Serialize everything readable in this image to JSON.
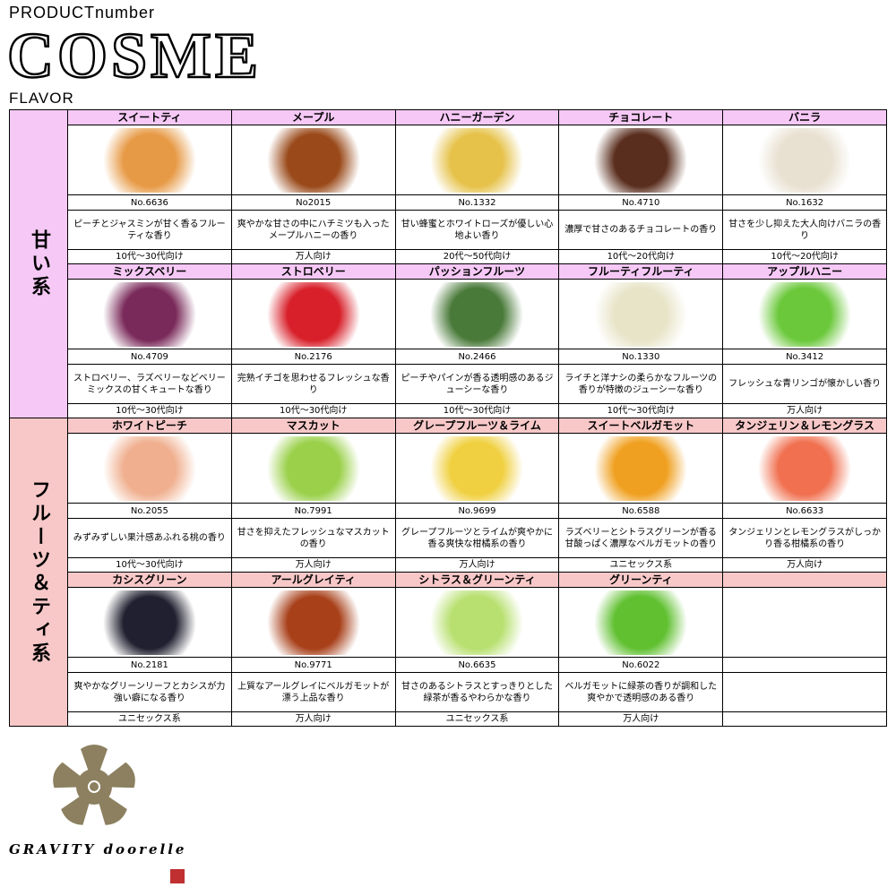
{
  "header": {
    "top": "PRODUCT",
    "top_suffix": "number",
    "title": "COSME",
    "sub": "FLAVOR"
  },
  "colors": {
    "sweet": "#f5c8f5",
    "fruit": "#f8c8c8"
  },
  "groups": [
    {
      "label": "甘い系",
      "color": "#f5c8f5",
      "rows": [
        [
          {
            "name": "スイートティ",
            "no": "No.6636",
            "desc": "ピーチとジャスミンが甘く香るフルーティな香り",
            "age": "10代～30代向け",
            "img": "#e79a46"
          },
          {
            "name": "メープル",
            "no": "No2015",
            "desc": "爽やかな甘さの中にハチミツも入ったメープルハニーの香り",
            "age": "万人向け",
            "img": "#9a4a1a"
          },
          {
            "name": "ハニーガーデン",
            "no": "No.1332",
            "desc": "甘い蜂蜜とホワイトローズが優しい心地よい香り",
            "age": "20代～50代向け",
            "img": "#e6c24a"
          },
          {
            "name": "チョコレート",
            "no": "No.4710",
            "desc": "濃厚で甘さのあるチョコレートの香り",
            "age": "10代～20代向け",
            "img": "#5a2e1e"
          },
          {
            "name": "バニラ",
            "no": "No.1632",
            "desc": "甘さを少し抑えた大人向けバニラの香り",
            "age": "10代～20代向け",
            "img": "#e8e0d0"
          }
        ],
        [
          {
            "name": "ミックスベリー",
            "no": "No.4709",
            "desc": "ストロベリー、ラズベリーなどベリーミックスの甘くキュートな香り",
            "age": "10代～30代向け",
            "img": "#7a2a5a"
          },
          {
            "name": "ストロベリー",
            "no": "No.2176",
            "desc": "完熟イチゴを思わせるフレッシュな香り",
            "age": "10代～30代向け",
            "img": "#d8202a"
          },
          {
            "name": "パッションフルーツ",
            "no": "No.2466",
            "desc": "ピーチやパインが香る透明感のあるジューシーな香り",
            "age": "10代～30代向け",
            "img": "#4a7a3a"
          },
          {
            "name": "フルーティフルーティ",
            "no": "No.1330",
            "desc": "ライチと洋ナシの柔らかなフルーツの香りが特徴のジューシーな香り",
            "age": "10代～30代向け",
            "img": "#e8e4c8"
          },
          {
            "name": "アップルハニー",
            "no": "No.3412",
            "desc": "フレッシュな青リンゴが懐かしい香り",
            "age": "万人向け",
            "img": "#6ac83a"
          }
        ]
      ]
    },
    {
      "label": "フルーツ＆ティ系",
      "color": "#f8c8c8",
      "rows": [
        [
          {
            "name": "ホワイトピーチ",
            "no": "No.2055",
            "desc": "みずみずしい果汁感あふれる桃の香り",
            "age": "10代～30代向け",
            "img": "#f0b090"
          },
          {
            "name": "マスカット",
            "no": "No.7991",
            "desc": "甘さを抑えたフレッシュなマスカットの香り",
            "age": "万人向け",
            "img": "#9ad04a"
          },
          {
            "name": "グレープフルーツ＆ライム",
            "no": "No.9699",
            "desc": "グレープフルーツとライムが爽やかに香る爽快な柑橘系の香り",
            "age": "万人向け",
            "img": "#f0d040"
          },
          {
            "name": "スイートベルガモット",
            "no": "No.6588",
            "desc": "ラズベリーとシトラスグリーンが香る甘酸っぱく濃厚なベルガモットの香り",
            "age": "ユニセックス系",
            "img": "#f0a020"
          },
          {
            "name": "タンジェリン＆レモングラス",
            "no": "No.6633",
            "desc": "タンジェリンとレモングラスがしっかり香る柑橘系の香り",
            "age": "万人向け",
            "img": "#f07050"
          }
        ],
        [
          {
            "name": "カシスグリーン",
            "no": "No.2181",
            "desc": "爽やかなグリーンリーフとカシスが力強い癖になる香り",
            "age": "ユニセックス系",
            "img": "#202030"
          },
          {
            "name": "アールグレイティ",
            "no": "No.9771",
            "desc": "上質なアールグレイにベルガモットが漂う上品な香り",
            "age": "万人向け",
            "img": "#a8401a"
          },
          {
            "name": "シトラス＆グリーンティ",
            "no": "No.6635",
            "desc": "甘さのあるシトラスとすっきりとした緑茶が香るやわらかな香り",
            "age": "ユニセックス系",
            "img": "#b8e070"
          },
          {
            "name": "グリーンティ",
            "no": "No.6022",
            "desc": "ベルガモットに緑茶の香りが調和した爽やかで透明感のある香り",
            "age": "万人向け",
            "img": "#60c030"
          },
          null
        ]
      ]
    }
  ],
  "footer": {
    "brand": "GRAVITY doorelle",
    "emblem_color": "#8c8060"
  }
}
